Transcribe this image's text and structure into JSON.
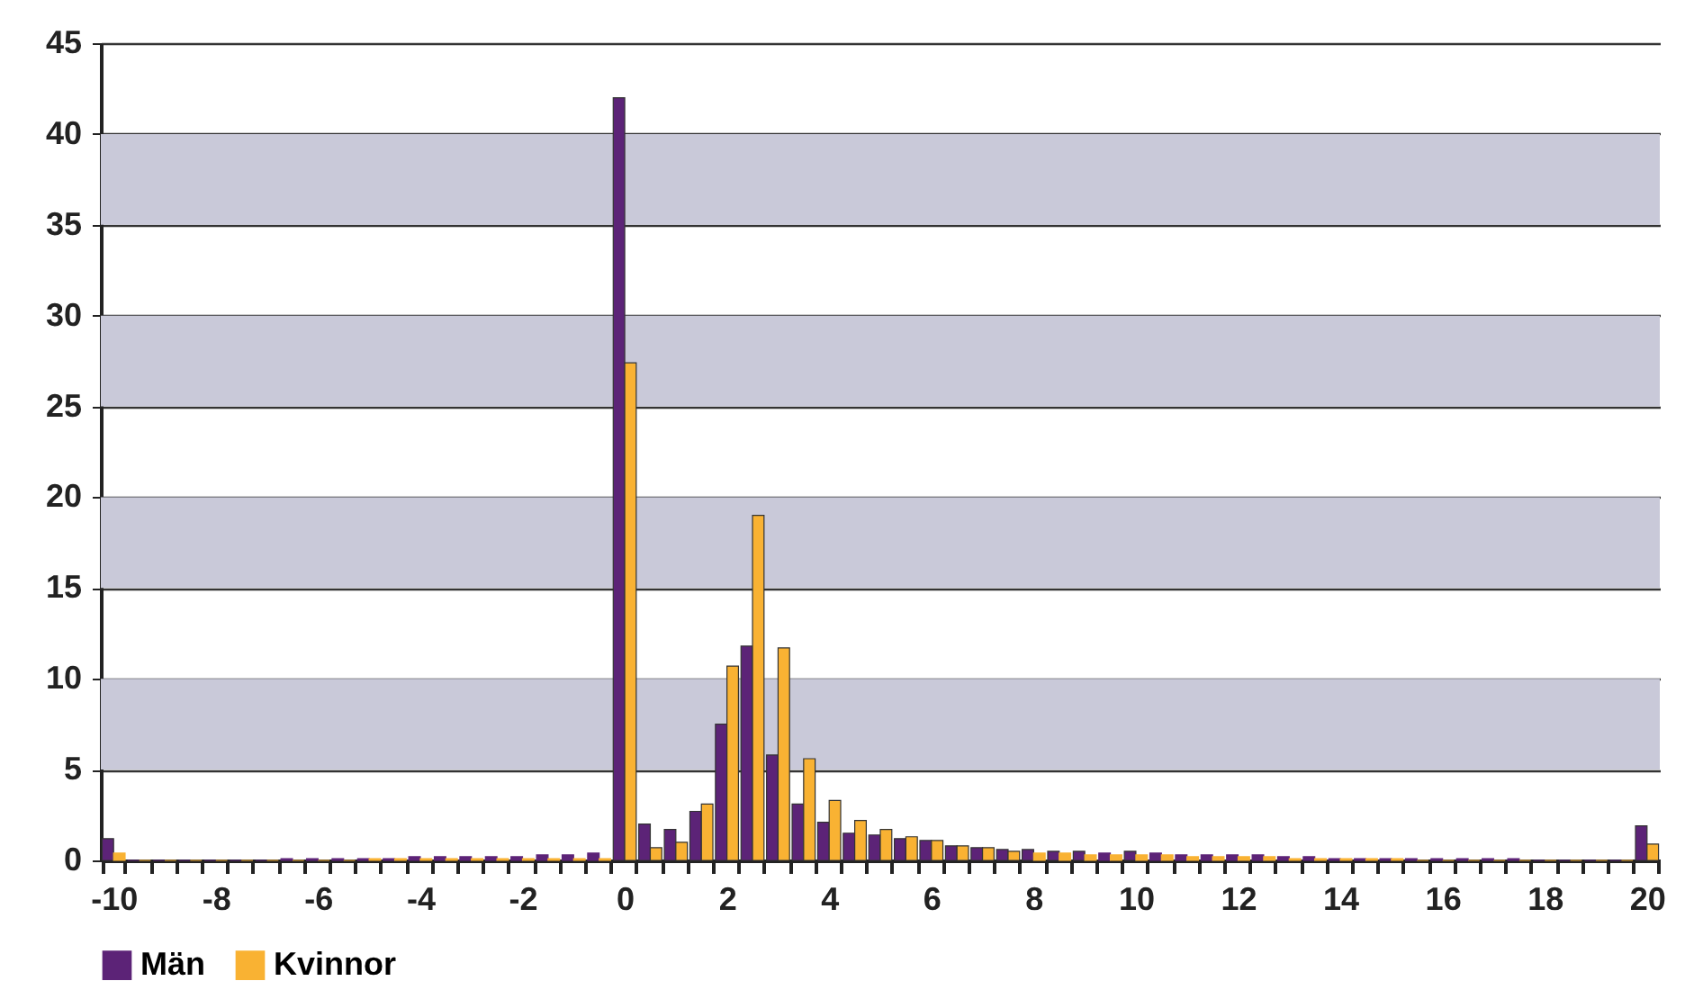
{
  "chart_data": {
    "type": "bar",
    "categories": [
      "-10",
      null,
      null,
      null,
      "-8",
      null,
      null,
      null,
      "-6",
      null,
      null,
      null,
      "-4",
      null,
      null,
      null,
      "-2",
      null,
      null,
      null,
      "0",
      null,
      null,
      null,
      "2",
      null,
      null,
      null,
      "4",
      null,
      null,
      null,
      "6",
      null,
      null,
      null,
      "8",
      null,
      null,
      null,
      "10",
      null,
      null,
      null,
      "12",
      null,
      null,
      null,
      "14",
      null,
      null,
      null,
      "16",
      null,
      null,
      null,
      "18",
      null,
      null,
      null,
      "20"
    ],
    "series": [
      {
        "name": "Män",
        "color": "#5c2377",
        "values": [
          1.2,
          0,
          0,
          0,
          0,
          0,
          0,
          0.1,
          0.1,
          0.1,
          0.1,
          0.1,
          0.2,
          0.2,
          0.2,
          0.2,
          0.2,
          0.3,
          0.3,
          0.4,
          42,
          2.0,
          1.7,
          2.7,
          7.5,
          11.8,
          5.8,
          3.1,
          2.1,
          1.5,
          1.4,
          1.2,
          1.1,
          0.8,
          0.7,
          0.6,
          0.6,
          0.5,
          0.5,
          0.4,
          0.5,
          0.4,
          0.3,
          0.3,
          0.3,
          0.3,
          0.2,
          0.2,
          0.1,
          0.1,
          0.1,
          0.1,
          0.1,
          0.1,
          0.1,
          0.1,
          0,
          0,
          0,
          0,
          1.9
        ]
      },
      {
        "name": "Kvinnor",
        "color": "#f9b233",
        "values": [
          0.4,
          0,
          0,
          0,
          0,
          0,
          0,
          0,
          0,
          0,
          0.1,
          0.1,
          0.1,
          0.1,
          0.1,
          0.1,
          0.1,
          0.1,
          0.1,
          0.1,
          27.4,
          0.7,
          1.0,
          3.1,
          10.7,
          19,
          11.7,
          5.6,
          3.3,
          2.2,
          1.7,
          1.3,
          1.1,
          0.8,
          0.7,
          0.5,
          0.4,
          0.4,
          0.3,
          0.3,
          0.3,
          0.3,
          0.2,
          0.2,
          0.2,
          0.2,
          0.1,
          0.1,
          0.1,
          0.1,
          0.1,
          0,
          0,
          0,
          0,
          0,
          0,
          0,
          0,
          0,
          0.9
        ]
      }
    ],
    "ylim": [
      0,
      45
    ],
    "yticks": [
      0,
      5,
      10,
      15,
      20,
      25,
      30,
      35,
      40,
      45
    ],
    "grid": "y",
    "legend": "bottom",
    "bands": [
      {
        "axis": "y",
        "from": 5,
        "to": 10,
        "color": "#c9c9d9"
      },
      {
        "axis": "y",
        "from": 15,
        "to": 20,
        "color": "#c9c9d9"
      },
      {
        "axis": "y",
        "from": 25,
        "to": 30,
        "color": "#c9c9d9"
      },
      {
        "axis": "y",
        "from": 35,
        "to": 40,
        "color": "#c9c9d9"
      }
    ]
  }
}
